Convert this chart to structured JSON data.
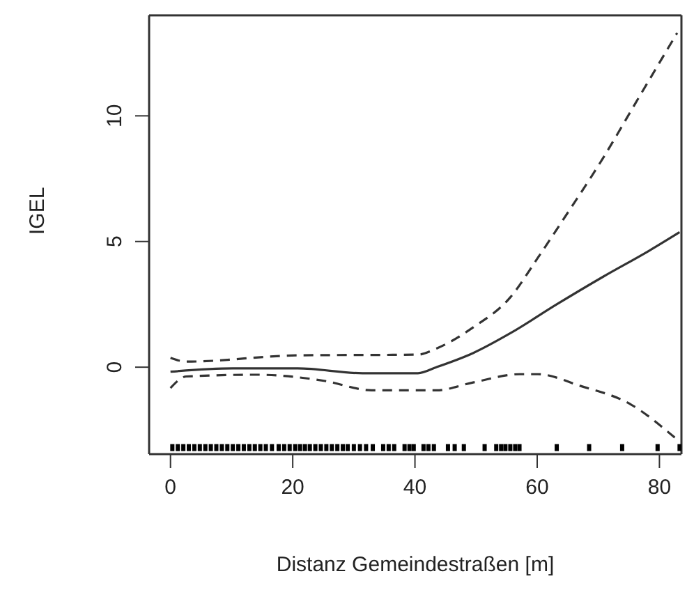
{
  "chart_data": {
    "type": "line",
    "xlabel": "Distanz Gemeindestraßen [m]",
    "ylabel": "IGEL",
    "xlim": [
      -3.5,
      83.6
    ],
    "xticks": [
      0,
      20,
      40,
      60,
      80
    ],
    "ylim": [
      -3.46,
      14
    ],
    "yticks": [
      0,
      5,
      10
    ],
    "series": [
      {
        "color": "#333333",
        "line_style": "solid",
        "x": [
          0,
          10.2,
          20.8,
          31.4,
          40.5,
          43.5,
          49.5,
          55.6,
          63.2,
          70.8,
          78.3,
          83.3
        ],
        "values": [
          -0.18,
          -0.05,
          -0.05,
          -0.24,
          -0.24,
          0,
          0.56,
          1.35,
          2.5,
          3.6,
          4.63,
          5.37
        ]
      },
      {
        "color": "#333333",
        "line_style": "dashed",
        "x": [
          0,
          2.6,
          20.8,
          40.5,
          43.5,
          49.5,
          55.6,
          60.1,
          63.9,
          70.8,
          76.8,
          82.9
        ],
        "values": [
          0.37,
          0.22,
          0.47,
          0.5,
          0.74,
          1.58,
          2.78,
          4.35,
          5.74,
          8.33,
          10.8,
          13.3
        ]
      },
      {
        "color": "#333333",
        "line_style": "dashed",
        "x": [
          0,
          2.6,
          14,
          25.3,
          32.9,
          43.5,
          49.5,
          57.1,
          60.1,
          67,
          75.3,
          82.5
        ],
        "values": [
          -0.83,
          -0.37,
          -0.3,
          -0.55,
          -0.92,
          -0.92,
          -0.61,
          -0.28,
          -0.28,
          -0.74,
          -1.48,
          -2.8
        ]
      },
      {
        "type": "scatter",
        "color": "#000000",
        "marker": "square",
        "x": [
          0.3,
          1.2,
          2.1,
          3,
          3.9,
          4.8,
          5.7,
          6.6,
          7.5,
          8.4,
          9.3,
          10.2,
          11.1,
          12,
          12.9,
          13.8,
          14.7,
          15.6,
          16.6,
          17.7,
          18.6,
          19.5,
          20.4,
          21.2,
          22,
          22.8,
          23.7,
          24.6,
          25.5,
          26.4,
          27.3,
          28.2,
          29,
          30,
          31,
          32,
          33.1,
          34.8,
          35.7,
          36.6,
          38.3,
          39.1,
          39.8,
          41.4,
          42.2,
          43.1,
          45.4,
          46.5,
          48,
          51.4,
          53.3,
          54.1,
          54.8,
          55.6,
          56.4,
          57.1,
          63.2,
          68.5,
          73.9,
          79.7,
          83.3
        ],
        "values": [
          -3.2,
          -3.2,
          -3.2,
          -3.2,
          -3.2,
          -3.2,
          -3.2,
          -3.2,
          -3.2,
          -3.2,
          -3.2,
          -3.2,
          -3.2,
          -3.2,
          -3.2,
          -3.2,
          -3.2,
          -3.2,
          -3.2,
          -3.2,
          -3.2,
          -3.2,
          -3.2,
          -3.2,
          -3.2,
          -3.2,
          -3.2,
          -3.2,
          -3.2,
          -3.2,
          -3.2,
          -3.2,
          -3.2,
          -3.2,
          -3.2,
          -3.2,
          -3.2,
          -3.2,
          -3.2,
          -3.2,
          -3.2,
          -3.2,
          -3.2,
          -3.2,
          -3.2,
          -3.2,
          -3.2,
          -3.2,
          -3.2,
          -3.2,
          -3.2,
          -3.2,
          -3.2,
          -3.2,
          -3.2,
          -3.2,
          -3.2,
          -3.2,
          -3.2,
          -3.2,
          -3.2
        ]
      }
    ]
  }
}
